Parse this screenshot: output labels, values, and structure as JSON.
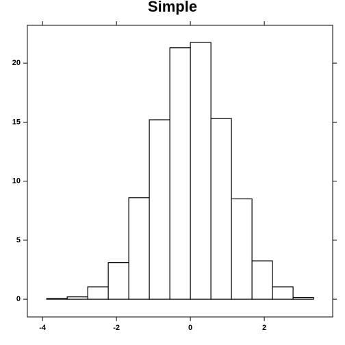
{
  "chart_data": {
    "type": "histogram",
    "title": "Simple",
    "bins": [
      -3.889,
      -3.333,
      -2.778,
      -2.222,
      -1.667,
      -1.111,
      -0.556,
      0,
      0.556,
      1.111,
      1.667,
      2.222,
      2.778,
      3.333
    ],
    "values": [
      0.06,
      0.2,
      1.05,
      3.1,
      8.6,
      15.2,
      21.3,
      21.75,
      15.3,
      8.5,
      3.25,
      1.05,
      0.15
    ],
    "color": "#ffffff",
    "xlim": [
      -4.41,
      3.85
    ],
    "xticks": [
      -4,
      -2,
      0,
      2
    ],
    "ylim": [
      -1.5,
      23.2
    ],
    "yticks": [
      0,
      5,
      10,
      15,
      20
    ]
  }
}
